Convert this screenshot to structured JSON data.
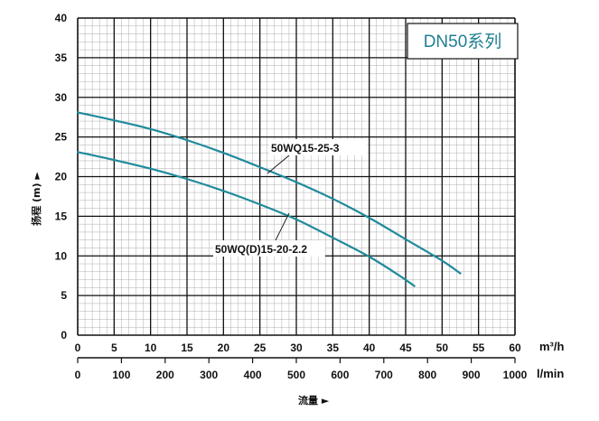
{
  "chart_data": {
    "type": "line",
    "badge": "DN50系列",
    "ylabel": "扬程 (m) ►",
    "xlabel": "流量 ►",
    "x_unit": "m³/h",
    "x2_unit": "l/min",
    "xlim": [
      0,
      60
    ],
    "ylim": [
      0,
      40
    ],
    "x_ticks": [
      "0",
      "5",
      "10",
      "15",
      "20",
      "25",
      "30",
      "35",
      "40",
      "45",
      "50",
      "55",
      "60"
    ],
    "x2_ticks": [
      "0",
      "100",
      "200",
      "300",
      "400",
      "500",
      "600",
      "700",
      "800",
      "900",
      "1000"
    ],
    "y_ticks": [
      "0",
      "5",
      "10",
      "15",
      "20",
      "25",
      "30",
      "35",
      "40"
    ],
    "grid": true,
    "colors": {
      "curve": "#1f8a9c",
      "grid": "#000000",
      "badge": "#1f7f93"
    },
    "series": [
      {
        "name": "50WQ15-25-3",
        "x": [
          0,
          5,
          10,
          15,
          20,
          25,
          30,
          35,
          40,
          45,
          50,
          52.5
        ],
        "y": [
          28.1,
          27.1,
          26.0,
          24.6,
          23.0,
          21.2,
          19.3,
          17.2,
          14.8,
          12.1,
          9.4,
          7.8
        ]
      },
      {
        "name": "50WQ(D)15-20-2.2",
        "x": [
          0,
          5,
          10,
          15,
          20,
          25,
          30,
          35,
          40,
          44,
          46.2
        ],
        "y": [
          23.1,
          22.1,
          21.0,
          19.7,
          18.2,
          16.5,
          14.6,
          12.3,
          9.9,
          7.6,
          6.2
        ]
      }
    ]
  }
}
